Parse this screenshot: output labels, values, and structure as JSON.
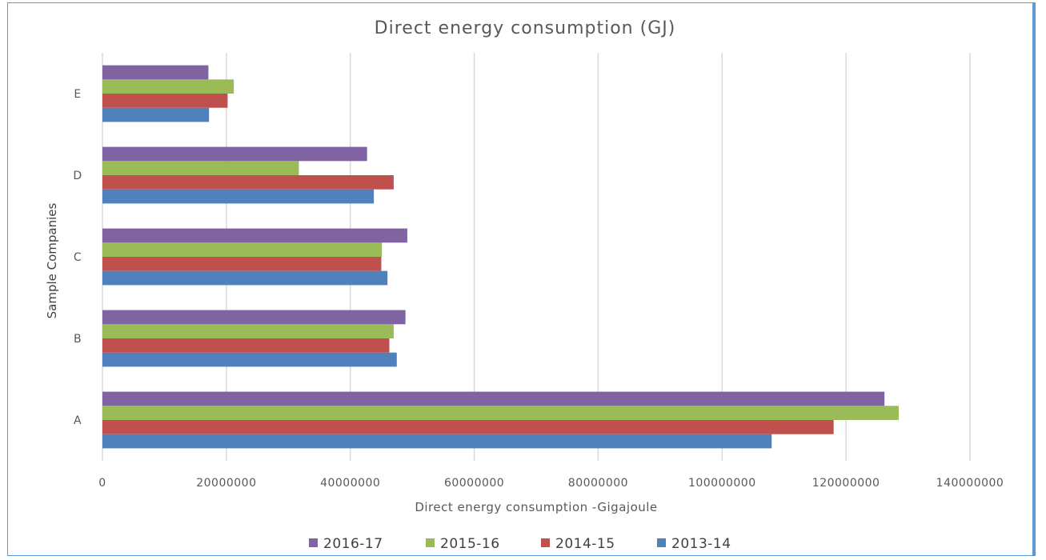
{
  "chart_data": {
    "type": "bar",
    "orientation": "horizontal",
    "title": "Direct energy consumption (GJ)",
    "xlabel": "Direct energy consumption -Gigajoule",
    "ylabel": "Sample Companies",
    "categories": [
      "A",
      "B",
      "C",
      "D",
      "E"
    ],
    "xlim": [
      0,
      140000000
    ],
    "x_ticks": [
      "0",
      "20000000",
      "40000000",
      "60000000",
      "80000000",
      "100000000",
      "120000000",
      "140000000"
    ],
    "grid": "vertical",
    "legend_position": "bottom",
    "series": [
      {
        "name": "2013-14",
        "color": "#4f81bd",
        "values": [
          108000000,
          47500000,
          46000000,
          43800000,
          17200000
        ]
      },
      {
        "name": "2014-15",
        "color": "#c0504d",
        "values": [
          118000000,
          46300000,
          45000000,
          47000000,
          20200000
        ]
      },
      {
        "name": "2015-16",
        "color": "#9bbb59",
        "values": [
          128500000,
          47000000,
          45100000,
          31700000,
          21200000
        ]
      },
      {
        "name": "2016-17",
        "color": "#8064a2",
        "values": [
          126200000,
          48900000,
          49200000,
          42700000,
          17100000
        ]
      }
    ],
    "legend_order": [
      "2016-17",
      "2015-16",
      "2014-15",
      "2013-14"
    ]
  }
}
